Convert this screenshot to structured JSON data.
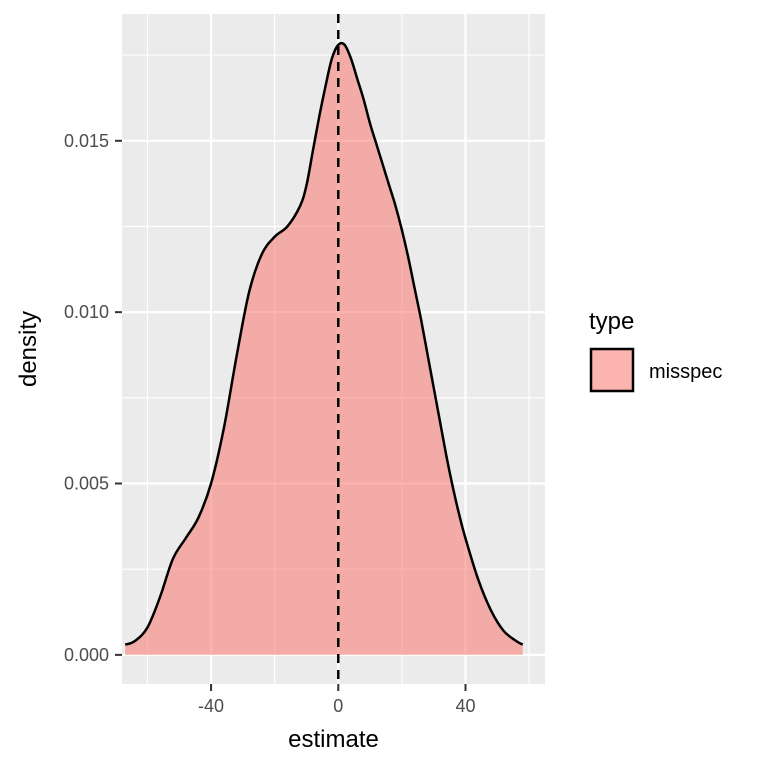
{
  "chart_data": {
    "type": "area",
    "xlabel": "estimate",
    "ylabel": "density",
    "xlim": [
      -68,
      65
    ],
    "ylim": [
      -0.00085,
      0.0187
    ],
    "x_ticks": [
      -40,
      0,
      40
    ],
    "x_tick_labels": [
      "-40",
      "0",
      "40"
    ],
    "y_ticks": [
      0.0,
      0.005,
      0.01,
      0.015
    ],
    "y_tick_labels": [
      "0.000",
      "0.005",
      "0.010",
      "0.015"
    ],
    "grid": true,
    "legend": {
      "title": "type",
      "position": "right",
      "entries": [
        {
          "label": "misspec",
          "color": "#F8766D"
        }
      ]
    },
    "reference_line": {
      "x": 0,
      "style": "dashed",
      "color": "#000000"
    },
    "series": [
      {
        "name": "misspec",
        "fill": "#F8766D",
        "fill_opacity": 0.55,
        "stroke": "#000000",
        "x": [
          -67,
          -64,
          -60,
          -56,
          -52,
          -48,
          -44,
          -40,
          -36,
          -32,
          -28,
          -24,
          -20,
          -16,
          -12,
          -10,
          -8,
          -6,
          -4,
          -2,
          0,
          2,
          4,
          6,
          8,
          10,
          12,
          14,
          16,
          18,
          20,
          22,
          24,
          26,
          28,
          30,
          32,
          34,
          36,
          38,
          40,
          44,
          48,
          52,
          56,
          58
        ],
        "y": [
          0.0003,
          0.0004,
          0.0008,
          0.0017,
          0.0028,
          0.0034,
          0.004,
          0.005,
          0.0066,
          0.0087,
          0.0106,
          0.0117,
          0.0122,
          0.0125,
          0.0131,
          0.0137,
          0.0147,
          0.0157,
          0.0166,
          0.0174,
          0.0178,
          0.0178,
          0.0174,
          0.0168,
          0.0162,
          0.0155,
          0.0149,
          0.0143,
          0.0137,
          0.0131,
          0.0124,
          0.0116,
          0.0107,
          0.0098,
          0.0088,
          0.0078,
          0.0068,
          0.0058,
          0.0049,
          0.0041,
          0.0034,
          0.0022,
          0.0013,
          0.0007,
          0.0004,
          0.0003
        ]
      }
    ]
  },
  "colors": {
    "panel_background": "#EBEBEB",
    "grid": "#FFFFFF",
    "tick_text": "#4D4D4D"
  }
}
